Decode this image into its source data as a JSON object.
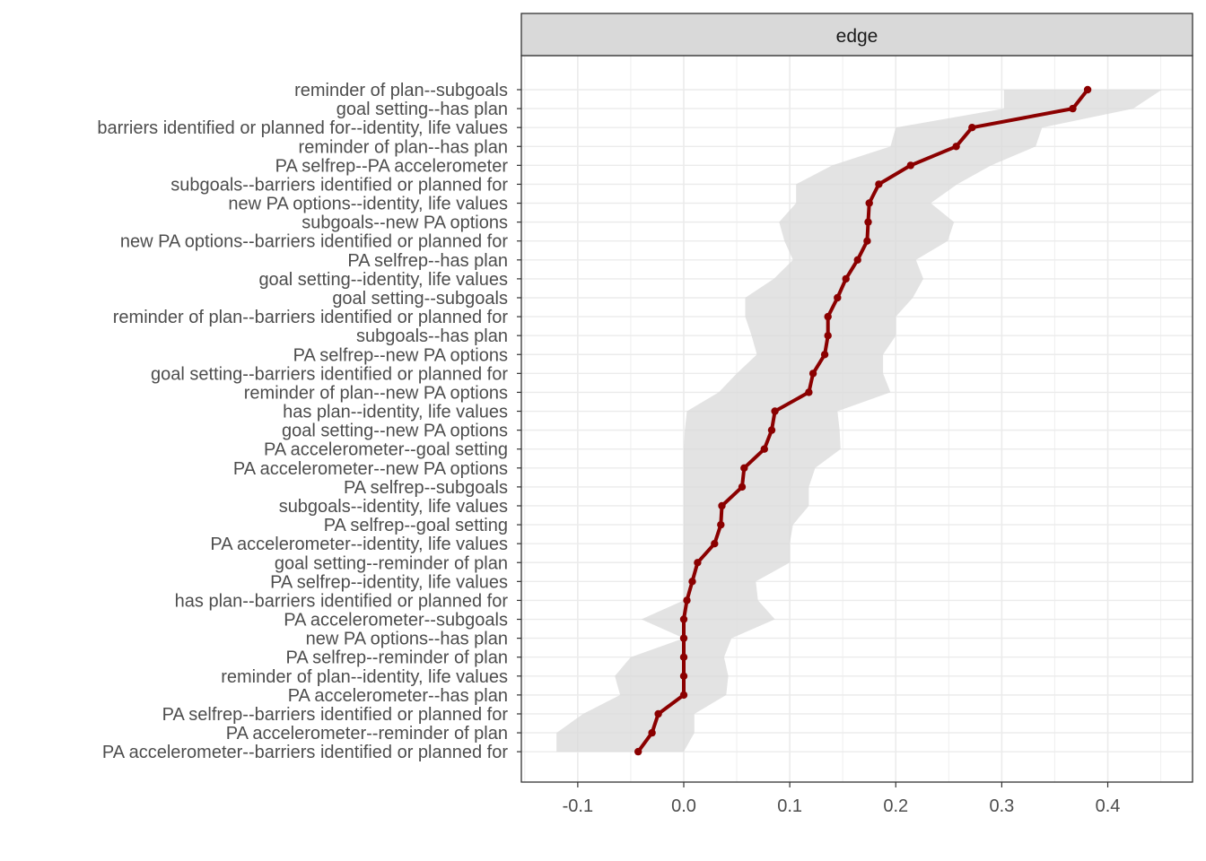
{
  "chart_data": {
    "type": "line",
    "facet_label": "edge",
    "xlim": [
      -0.15,
      0.48
    ],
    "x_ticks": [
      -0.1,
      0.0,
      0.1,
      0.2,
      0.3,
      0.4
    ],
    "x_tick_labels": [
      "-0.1",
      "0.0",
      "0.1",
      "0.2",
      "0.3",
      "0.4"
    ],
    "grid": true,
    "line_color": "#8b0000",
    "ribbon_color": "#d9d9d9",
    "categories": [
      "reminder of plan--subgoals",
      "goal setting--has plan",
      "barriers identified or planned for--identity, life values",
      "reminder of plan--has plan",
      "PA selfrep--PA accelerometer",
      "subgoals--barriers identified or planned for",
      "new PA options--identity, life values",
      "subgoals--new PA options",
      "new PA options--barriers identified or planned for",
      "PA selfrep--has plan",
      "goal setting--identity, life values",
      "goal setting--subgoals",
      "reminder of plan--barriers identified or planned for",
      "subgoals--has plan",
      "PA selfrep--new PA options",
      "goal setting--barriers identified or planned for",
      "reminder of plan--new PA options",
      "has plan--identity, life values",
      "goal setting--new PA options",
      "PA accelerometer--goal setting",
      "PA accelerometer--new PA options",
      "PA selfrep--subgoals",
      "subgoals--identity, life values",
      "PA selfrep--goal setting",
      "PA accelerometer--identity, life values",
      "goal setting--reminder of plan",
      "PA selfrep--identity, life values",
      "has plan--barriers identified or planned for",
      "PA accelerometer--subgoals",
      "new PA options--has plan",
      "PA selfrep--reminder of plan",
      "reminder of plan--identity, life values",
      "PA accelerometer--has plan",
      "PA selfrep--barriers identified or planned for",
      "PA accelerometer--reminder of plan",
      "PA accelerometer--barriers identified or planned for"
    ],
    "values": [
      0.381,
      0.367,
      0.272,
      0.257,
      0.214,
      0.184,
      0.175,
      0.174,
      0.173,
      0.164,
      0.153,
      0.145,
      0.136,
      0.136,
      0.133,
      0.122,
      0.118,
      0.086,
      0.083,
      0.076,
      0.057,
      0.055,
      0.036,
      0.035,
      0.029,
      0.013,
      0.008,
      0.003,
      0.0,
      0.0,
      0.0,
      0.0,
      0.0,
      -0.024,
      -0.03,
      -0.043
    ],
    "lower": [
      0.302,
      0.302,
      0.2,
      0.195,
      0.14,
      0.106,
      0.106,
      0.09,
      0.095,
      0.103,
      0.085,
      0.058,
      0.058,
      0.064,
      0.069,
      0.05,
      0.033,
      0.003,
      0.001,
      0.0,
      0.0,
      0.0,
      0.0,
      0.0,
      0.0,
      0.0,
      0.0,
      0.0,
      -0.04,
      0.0,
      -0.05,
      -0.065,
      -0.06,
      -0.095,
      -0.12,
      -0.12
    ],
    "upper": [
      0.451,
      0.424,
      0.338,
      0.332,
      0.29,
      0.258,
      0.233,
      0.255,
      0.249,
      0.219,
      0.226,
      0.216,
      0.2,
      0.2,
      0.188,
      0.188,
      0.195,
      0.145,
      0.147,
      0.148,
      0.124,
      0.118,
      0.118,
      0.103,
      0.1,
      0.1,
      0.068,
      0.07,
      0.086,
      0.045,
      0.038,
      0.042,
      0.04,
      0.01,
      0.01,
      0.0
    ]
  }
}
